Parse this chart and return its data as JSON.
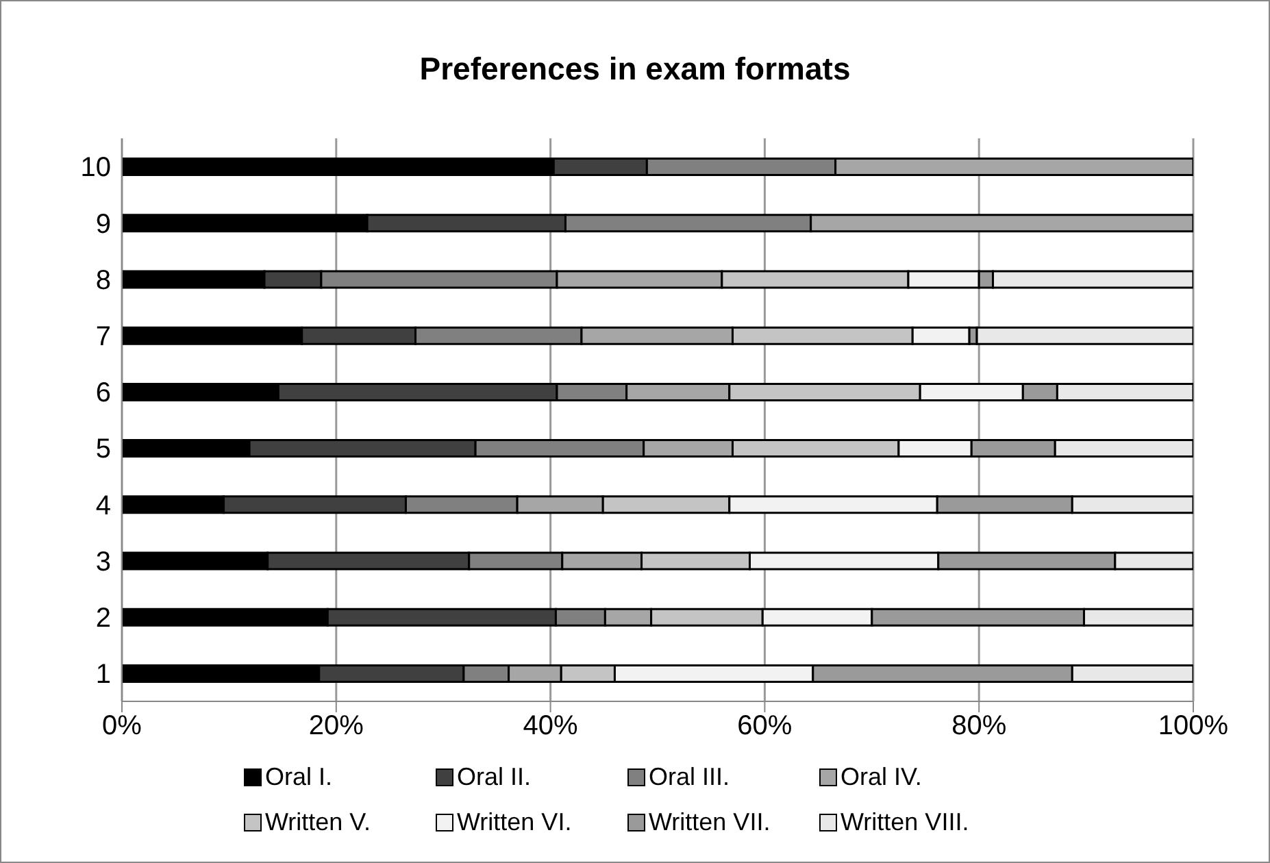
{
  "chart_data": {
    "type": "bar",
    "title": "Preferences in exam formats",
    "orientation": "horizontal",
    "stacked": true,
    "categories": [
      "10",
      "9",
      "8",
      "7",
      "6",
      "5",
      "4",
      "3",
      "2",
      "1"
    ],
    "series": [
      {
        "name": "Oral I.",
        "color": "#000000",
        "values": [
          40.3,
          22.9,
          13.3,
          16.8,
          14.6,
          11.9,
          9.5,
          13.6,
          19.2,
          18.4
        ]
      },
      {
        "name": "Oral II.",
        "color": "#404040",
        "values": [
          8.7,
          18.5,
          5.3,
          10.6,
          26.0,
          21.1,
          17.0,
          18.8,
          21.3,
          13.5
        ]
      },
      {
        "name": "Oral III.",
        "color": "#808080",
        "values": [
          17.6,
          22.9,
          22.0,
          15.5,
          6.5,
          15.7,
          10.4,
          8.7,
          4.6,
          4.2
        ]
      },
      {
        "name": "Oral IV.",
        "color": "#a6a6a6",
        "values": [
          33.4,
          35.7,
          15.4,
          14.1,
          9.6,
          8.3,
          8.0,
          7.4,
          4.3,
          4.9
        ]
      },
      {
        "name": "Written V.",
        "color": "#c4c4c4",
        "values": [
          null,
          null,
          17.4,
          16.8,
          17.8,
          15.5,
          11.8,
          10.1,
          10.4,
          5.0
        ]
      },
      {
        "name": "Written VI.",
        "color": "#f2f2f2",
        "values": [
          null,
          null,
          6.6,
          5.3,
          9.6,
          6.8,
          19.4,
          17.6,
          10.2,
          18.5
        ]
      },
      {
        "name": "Written VII.",
        "color": "#9a9a9a",
        "values": [
          null,
          null,
          1.3,
          0.7,
          3.2,
          7.8,
          12.6,
          16.5,
          19.8,
          24.2
        ]
      },
      {
        "name": "Written VIII.",
        "color": "#e8e8e8",
        "values": [
          null,
          null,
          18.7,
          20.2,
          12.7,
          12.9,
          11.3,
          7.3,
          10.2,
          11.3
        ]
      }
    ],
    "xlim": [
      0,
      100
    ],
    "xticks": [
      {
        "value": 0,
        "label": "0%"
      },
      {
        "value": 20,
        "label": "20%"
      },
      {
        "value": 40,
        "label": "40%"
      },
      {
        "value": 60,
        "label": "60%"
      },
      {
        "value": 80,
        "label": "80%"
      },
      {
        "value": 100,
        "label": "100%"
      }
    ],
    "grid": "x",
    "legend": "bottom"
  }
}
